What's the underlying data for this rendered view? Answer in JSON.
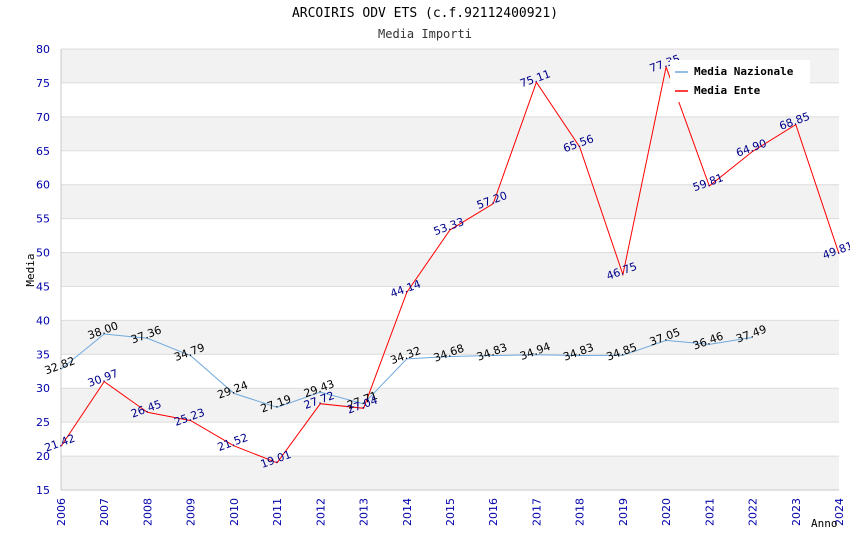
{
  "chart_data": {
    "type": "line",
    "title": "ARCOIRIS ODV ETS (c.f.92112400921)",
    "subtitle": "Media Importi",
    "xlabel": "Anno",
    "ylabel": "Media",
    "ylim": [
      15,
      80
    ],
    "yticks": [
      15,
      20,
      25,
      30,
      35,
      40,
      45,
      50,
      55,
      60,
      65,
      70,
      75,
      80
    ],
    "x": [
      "2006",
      "2007",
      "2008",
      "2009",
      "2010",
      "2011",
      "2012",
      "2013",
      "2014",
      "2015",
      "2016",
      "2017",
      "2018",
      "2019",
      "2020",
      "2021",
      "2022",
      "2023",
      "2024"
    ],
    "grid": "horizontal alternating bands",
    "legend_position": "top-right",
    "series": [
      {
        "name": "Media Nazionale",
        "color": "#6fa8dc",
        "label_color": "#000000",
        "values": [
          32.82,
          38.0,
          37.36,
          34.79,
          29.24,
          27.19,
          29.43,
          27.71,
          34.32,
          34.68,
          34.83,
          34.94,
          34.83,
          34.85,
          37.05,
          36.46,
          37.49,
          null,
          null
        ],
        "labels": [
          "32.82",
          "38.00",
          "37.36",
          "34.79",
          "29.24",
          "27.19",
          "29.43",
          "27.71",
          "34.32",
          "34.68",
          "34.83",
          "34.94",
          "34.83",
          "34.85",
          "37.05",
          "36.46",
          "37.49",
          null,
          null
        ]
      },
      {
        "name": "Media Ente",
        "color": "#ff0000",
        "label_color": "#00008b",
        "values": [
          21.42,
          30.97,
          26.45,
          25.23,
          21.52,
          19.01,
          27.72,
          27.04,
          44.14,
          53.33,
          57.2,
          75.11,
          65.56,
          46.75,
          77.35,
          59.81,
          64.9,
          68.85,
          49.81
        ],
        "labels": [
          "21.42",
          "30.97",
          "26.45",
          "25.23",
          "21.52",
          "19.01",
          "27.72",
          "27.04",
          "44.14",
          "53.33",
          "57.20",
          "75.11",
          "65.56",
          "46.75",
          "77.35",
          "59.81",
          "64.90",
          "68.85",
          "49.81"
        ]
      }
    ]
  }
}
